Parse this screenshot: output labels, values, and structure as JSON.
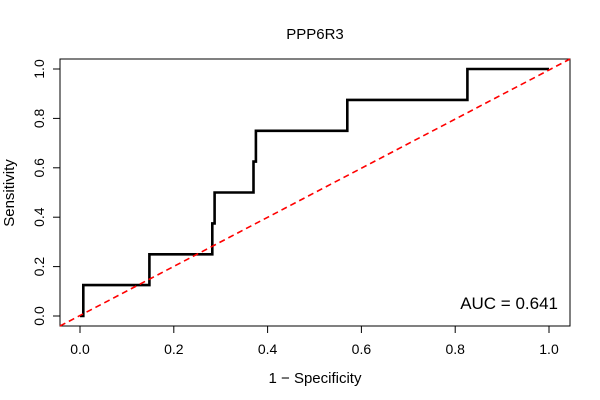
{
  "chart_data": {
    "type": "line",
    "title": "PPP6R3",
    "xlabel": "1 − Specificity",
    "ylabel": "Sensitivity",
    "xlim": [
      0,
      1
    ],
    "ylim": [
      0,
      1
    ],
    "x_ticks": [
      0.0,
      0.2,
      0.4,
      0.6,
      0.8,
      1.0
    ],
    "x_tick_labels": [
      "0.0",
      "0.2",
      "0.4",
      "0.6",
      "0.8",
      "1.0"
    ],
    "y_ticks": [
      0.0,
      0.2,
      0.4,
      0.6,
      0.8,
      1.0
    ],
    "y_tick_labels": [
      "0.0",
      "0.2",
      "0.4",
      "0.6",
      "0.8",
      "1.0"
    ],
    "grid": false,
    "annotation": "AUC = 0.641",
    "series": [
      {
        "name": "ROC",
        "color": "#000000",
        "points": [
          [
            0.0,
            0.0
          ],
          [
            0.007,
            0.0
          ],
          [
            0.007,
            0.125
          ],
          [
            0.148,
            0.125
          ],
          [
            0.148,
            0.25
          ],
          [
            0.282,
            0.25
          ],
          [
            0.282,
            0.375
          ],
          [
            0.287,
            0.375
          ],
          [
            0.287,
            0.5
          ],
          [
            0.37,
            0.5
          ],
          [
            0.37,
            0.625
          ],
          [
            0.375,
            0.625
          ],
          [
            0.375,
            0.75
          ],
          [
            0.57,
            0.75
          ],
          [
            0.57,
            0.875
          ],
          [
            0.826,
            0.875
          ],
          [
            0.826,
            1.0
          ],
          [
            1.0,
            1.0
          ]
        ]
      },
      {
        "name": "Reference",
        "color": "#ff0000",
        "style": "dashed",
        "points": [
          [
            0.0,
            0.0
          ],
          [
            1.0,
            1.0
          ]
        ]
      }
    ]
  }
}
